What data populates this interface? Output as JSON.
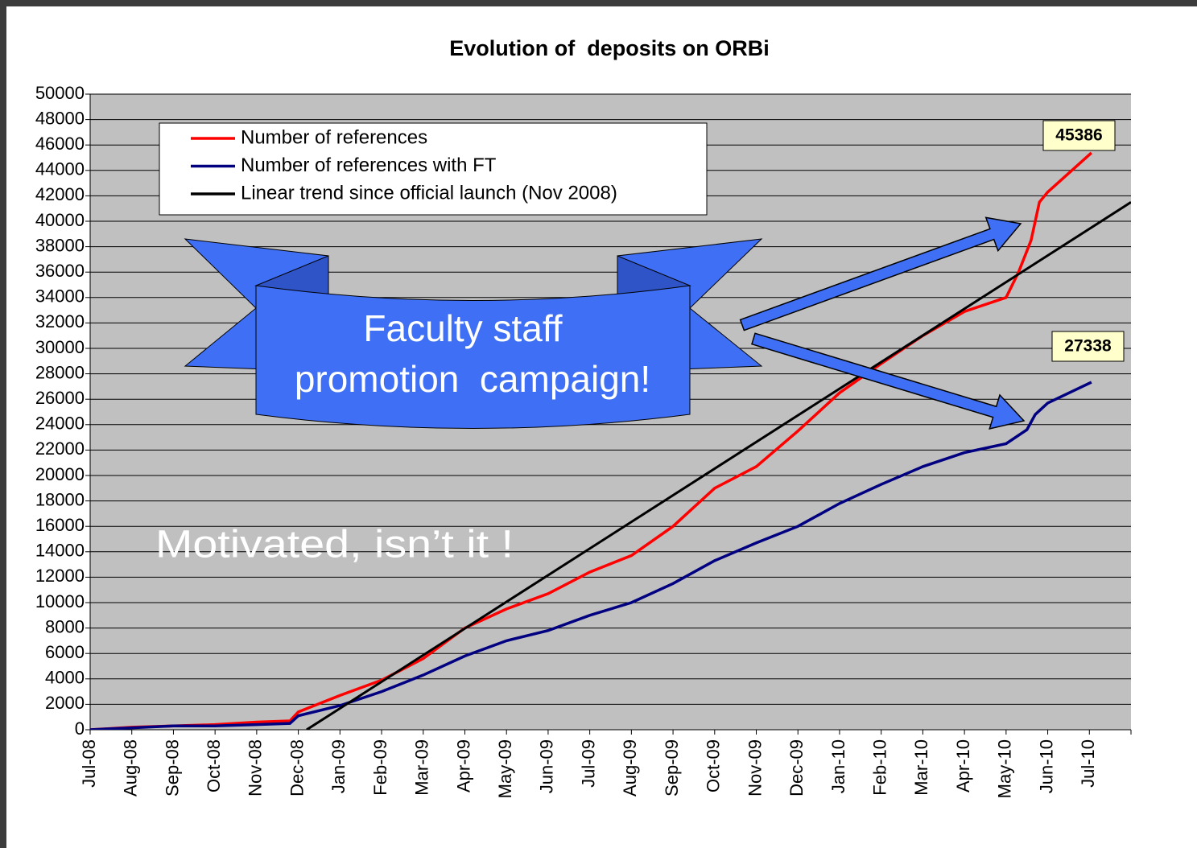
{
  "chart_data": {
    "type": "line",
    "title": "Evolution of  deposits on ORBi",
    "annotations": [
      "Faculty staff",
      "promotion  campaign!",
      "Motivated, isn’t it !"
    ],
    "xlim": [
      0,
      25
    ],
    "xticks": [
      {
        "value": 0,
        "label": "Jul-08"
      },
      {
        "value": 1,
        "label": "Aug-08"
      },
      {
        "value": 2,
        "label": "Sep-08"
      },
      {
        "value": 3,
        "label": "Oct-08"
      },
      {
        "value": 4,
        "label": "Nov-08"
      },
      {
        "value": 5,
        "label": "Dec-08"
      },
      {
        "value": 6,
        "label": "Jan-09"
      },
      {
        "value": 7,
        "label": "Feb-09"
      },
      {
        "value": 8,
        "label": "Mar-09"
      },
      {
        "value": 9,
        "label": "Apr-09"
      },
      {
        "value": 10,
        "label": "May-09"
      },
      {
        "value": 11,
        "label": "Jun-09"
      },
      {
        "value": 12,
        "label": "Jul-09"
      },
      {
        "value": 13,
        "label": "Aug-09"
      },
      {
        "value": 14,
        "label": "Sep-09"
      },
      {
        "value": 15,
        "label": "Oct-09"
      },
      {
        "value": 16,
        "label": "Nov-09"
      },
      {
        "value": 17,
        "label": "Dec-09"
      },
      {
        "value": 18,
        "label": "Jan-10"
      },
      {
        "value": 19,
        "label": "Feb-10"
      },
      {
        "value": 20,
        "label": "Mar-10"
      },
      {
        "value": 21,
        "label": "Apr-10"
      },
      {
        "value": 22,
        "label": "May-10"
      },
      {
        "value": 23,
        "label": "Jun-10"
      },
      {
        "value": 24,
        "label": "Jul-10"
      }
    ],
    "ylim": [
      0,
      50000
    ],
    "yticks": [
      0,
      2000,
      4000,
      6000,
      8000,
      10000,
      12000,
      14000,
      16000,
      18000,
      20000,
      22000,
      24000,
      26000,
      28000,
      30000,
      32000,
      34000,
      36000,
      38000,
      40000,
      42000,
      44000,
      46000,
      48000,
      50000
    ],
    "grid": true,
    "legend": "upper left",
    "series": [
      {
        "name": "Number of references",
        "color": "#ff0000",
        "x": [
          0,
          1,
          2,
          3,
          4,
          4.8,
          5,
          6,
          7,
          8,
          9,
          10,
          11,
          12,
          13,
          14,
          15,
          16,
          17,
          18,
          19,
          20,
          21,
          22,
          22.3,
          22.6,
          22.8,
          23,
          24.05
        ],
        "values": [
          0,
          200,
          300,
          400,
          600,
          700,
          1400,
          2700,
          3900,
          5600,
          8000,
          9500,
          10700,
          12400,
          13700,
          16000,
          19000,
          20700,
          23500,
          26500,
          28800,
          31000,
          32900,
          34000,
          36000,
          38500,
          41500,
          42300,
          45386
        ]
      },
      {
        "name": "Number of references with FT",
        "color": "#000080",
        "x": [
          0,
          1,
          2,
          3,
          4,
          4.8,
          5,
          6,
          7,
          8,
          9,
          10,
          11,
          12,
          13,
          14,
          15,
          16,
          17,
          18,
          19,
          20,
          21,
          22,
          22.5,
          22.7,
          23,
          24.05
        ],
        "values": [
          0,
          150,
          300,
          300,
          400,
          500,
          1100,
          1900,
          3000,
          4300,
          5800,
          7000,
          7800,
          9000,
          10000,
          11500,
          13300,
          14700,
          16000,
          17800,
          19300,
          20700,
          21800,
          22500,
          23600,
          24800,
          25700,
          27338
        ]
      },
      {
        "name": "Linear trend since official launch (Nov 2008)",
        "color": "#000000",
        "x": [
          5.2,
          25
        ],
        "values": [
          0,
          41500
        ]
      }
    ]
  }
}
